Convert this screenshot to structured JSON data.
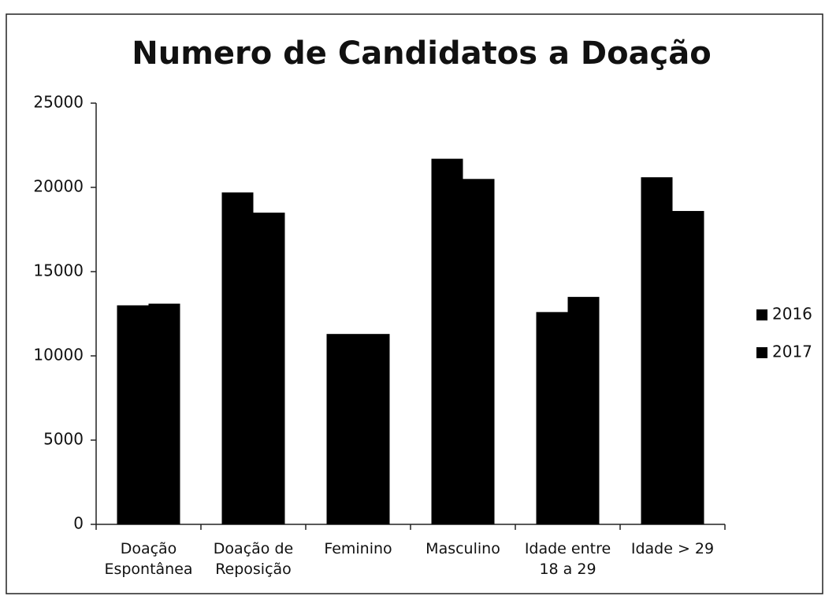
{
  "chart_data": {
    "type": "bar",
    "title": "Numero de Candidatos a Doação",
    "categories": [
      "Doação Espontânea",
      "Doação de Reposição",
      "Feminino",
      "Masculino",
      "Idade entre 18 a 29",
      "Idade > 29"
    ],
    "series": [
      {
        "name": "2016",
        "color": "#000000",
        "values": [
          13000,
          19700,
          11300,
          21700,
          12600,
          20600
        ]
      },
      {
        "name": "2017",
        "color": "#000000",
        "values": [
          13100,
          18500,
          11300,
          20500,
          13500,
          18600
        ]
      }
    ],
    "ylim": [
      0,
      25000
    ],
    "yticks": [
      0,
      5000,
      10000,
      15000,
      20000,
      25000
    ],
    "grid": false,
    "legend": "right"
  }
}
